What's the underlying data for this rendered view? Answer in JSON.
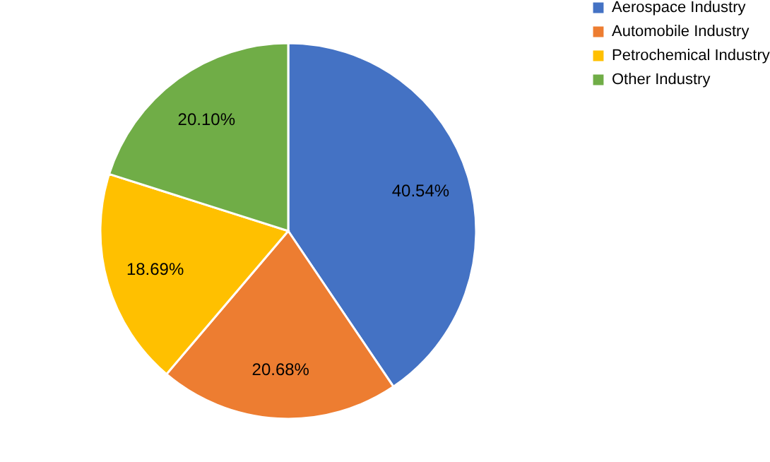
{
  "chart_data": {
    "type": "pie",
    "categories": [
      "Aerospace Industry",
      "Automobile Industry",
      "Petrochemical Industry",
      "Other Industry"
    ],
    "values": [
      40.54,
      20.68,
      18.69,
      20.1
    ],
    "value_labels": [
      "40.54%",
      "20.68%",
      "18.69%",
      "20.10%"
    ],
    "colors": [
      "#4472c4",
      "#ed7d31",
      "#ffc000",
      "#70ad47"
    ],
    "legend": "right"
  }
}
